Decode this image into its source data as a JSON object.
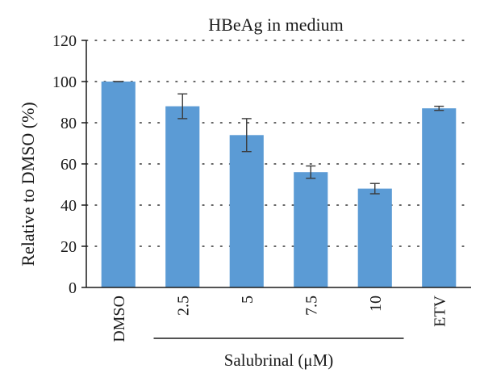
{
  "chart_data": {
    "type": "bar",
    "title": "HBeAg in medium",
    "ylabel": "Relative to DMSO (%)",
    "xlabel": "",
    "ylim": [
      0,
      120
    ],
    "yticks": [
      0,
      20,
      40,
      60,
      80,
      100,
      120
    ],
    "grid": "dotted horizontal",
    "categories": [
      "DMSO",
      "2.5",
      "5",
      "7.5",
      "10",
      "ETV"
    ],
    "values": [
      100,
      88,
      74,
      56,
      48,
      87
    ],
    "error_bars": [
      0,
      6,
      8,
      3,
      2.5,
      1
    ],
    "bar_color": "#5B9BD5",
    "group_label": {
      "text": "Salubrinal (μM)",
      "categories": [
        "2.5",
        "5",
        "7.5",
        "10"
      ]
    }
  }
}
